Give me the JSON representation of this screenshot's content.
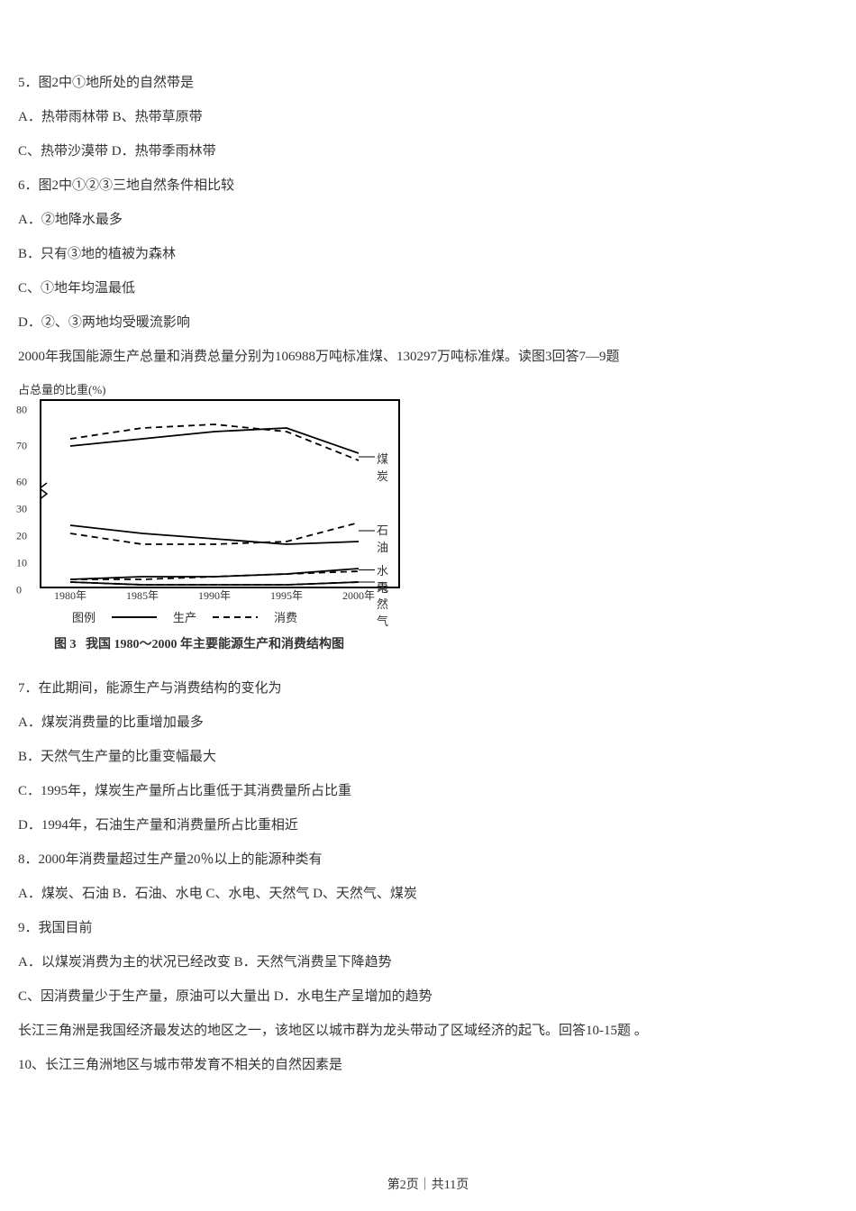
{
  "q5": {
    "stem": "5．图2中①地所处的自然带是",
    "a": "A．热带雨林带 B、热带草原带",
    "c": "C、热带沙漠带 D．热带季雨林带"
  },
  "q6": {
    "stem": "6．图2中①②③三地自然条件相比较",
    "a": "A．②地降水最多",
    "b": "B．只有③地的植被为森林",
    "c": "C、①地年均温最低",
    "d": "D．②、③两地均受暖流影响"
  },
  "intro7_9": "2000年我国能源生产总量和消费总量分别为106988万吨标准煤、130297万吨标准煤。读图3回答7—9题",
  "chart": {
    "ylabel": "占总量的比重(%)",
    "yticks": [
      0,
      10,
      20,
      30,
      60,
      70,
      80
    ],
    "xticks": [
      "1980年",
      "1985年",
      "1990年",
      "1995年",
      "2000年"
    ],
    "series": {
      "coal_prod": {
        "label": "煤炭",
        "y": [
          70,
          72,
          74,
          75,
          68
        ],
        "style": "solid"
      },
      "coal_cons": {
        "y": [
          72,
          75,
          76,
          74,
          66
        ],
        "style": "dashed"
      },
      "oil_prod": {
        "label": "石油",
        "y": [
          24,
          21,
          19,
          17,
          18
        ],
        "style": "solid"
      },
      "oil_cons": {
        "y": [
          21,
          17,
          17,
          18,
          25
        ],
        "style": "dashed"
      },
      "hydro_prod": {
        "label": "水电",
        "y": [
          4,
          5,
          5,
          6,
          8
        ],
        "style": "solid"
      },
      "hydro_cons": {
        "y": [
          4,
          4,
          5,
          6,
          7
        ],
        "style": "dashed"
      },
      "gas_prod": {
        "label": "天然气",
        "y": [
          3,
          2,
          2,
          2,
          3
        ],
        "style": "solid"
      },
      "gas_cons": {
        "y": [
          3,
          2,
          2,
          2,
          3
        ],
        "style": "dashed"
      }
    },
    "legend": {
      "heading": "图例",
      "prod": "生产",
      "cons": "消费"
    },
    "caption_prefix": "图 3",
    "caption": "我国 1980～2000 年主要能源生产和消费结构图",
    "color": "#000000",
    "bg": "#ffffff"
  },
  "q7": {
    "stem": "7．在此期间，能源生产与消费结构的变化为",
    "a": "A．煤炭消费量的比重增加最多",
    "b": "B．天然气生产量的比重变幅最大",
    "c": "C．1995年，煤炭生产量所占比重低于其消费量所占比重",
    "d": "D．1994年，石油生产量和消费量所占比重相近"
  },
  "q8": {
    "stem": "8．2000年消费量超过生产量20％以上的能源种类有",
    "opts": "A．煤炭、石油 B．石油、水电 C、水电、天然气 D、天然气、煤炭"
  },
  "q9": {
    "stem": "9．我国目前",
    "ab": "A．以煤炭消费为主的状况已经改变 B．天然气消费呈下降趋势",
    "cd": "C、因消费量少于生产量，原油可以大量出 D．水电生产呈增加的趋势"
  },
  "intro10_15": "长江三角洲是我国经济最发达的地区之一，该地区以城市群为龙头带动了区域经济的起飞。回答10-15题 。",
  "q10": {
    "stem": "10、长江三角洲地区与城市带发育不相关的自然因素是"
  },
  "footer": "第2页｜共11页"
}
